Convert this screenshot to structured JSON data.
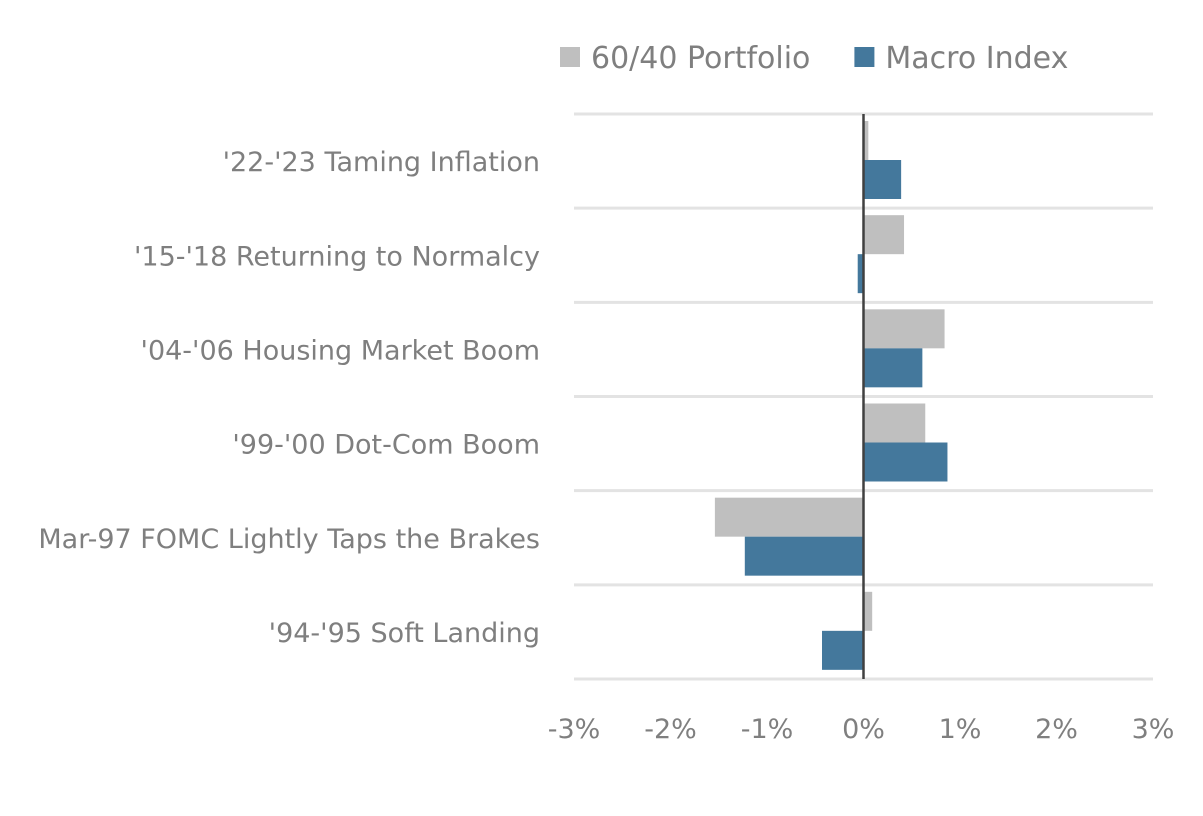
{
  "chart_data": {
    "type": "bar",
    "orientation": "horizontal",
    "categories": [
      "'22-'23 Taming Inflation",
      "'15-'18 Returning to Normalcy",
      "'04-'06 Housing Market Boom",
      "'99-'00 Dot-Com Boom",
      "Mar-97 FOMC Lightly Taps the Brakes",
      "'94-'95 Soft Landing"
    ],
    "series": [
      {
        "name": "60/40 Portfolio",
        "color": "#bfbfbf",
        "values": [
          0.05,
          0.42,
          0.84,
          0.64,
          -1.54,
          0.09
        ]
      },
      {
        "name": "Macro Index",
        "color": "#44789c",
        "values": [
          0.39,
          -0.06,
          0.61,
          0.87,
          -1.23,
          -0.43
        ]
      }
    ],
    "xlim": [
      -3,
      3
    ],
    "xticks": [
      "-3%",
      "-2%",
      "-1%",
      "0%",
      "1%",
      "2%",
      "3%"
    ],
    "grid": true,
    "legend": "top",
    "title": "",
    "xlabel": "",
    "ylabel": ""
  }
}
